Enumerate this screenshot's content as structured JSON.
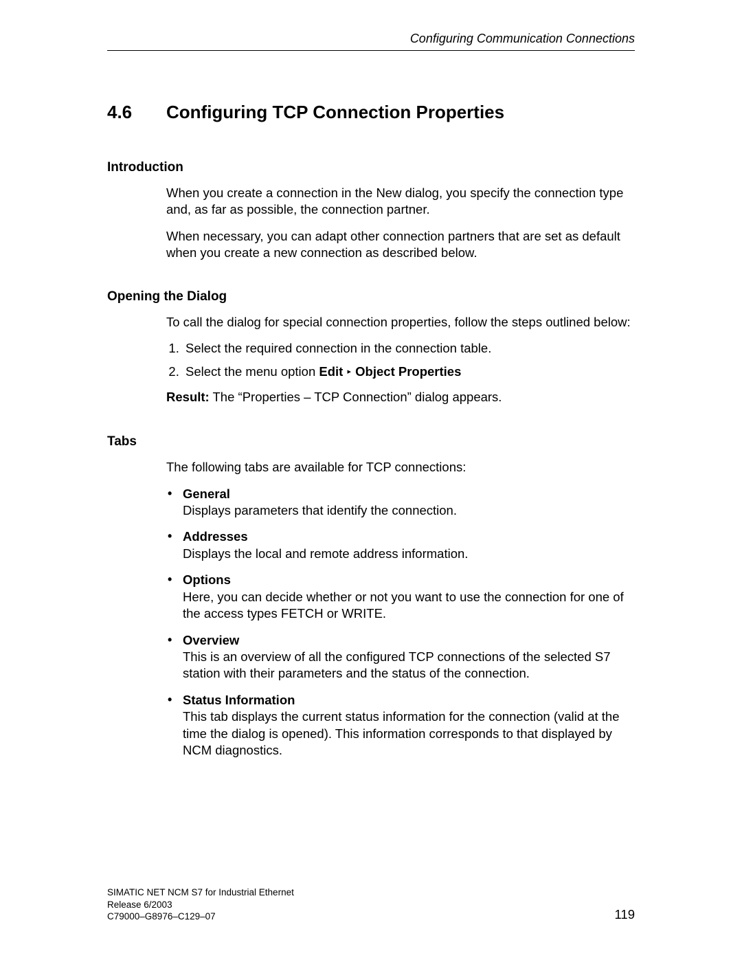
{
  "header": {
    "running_title": "Configuring Communication Connections"
  },
  "section": {
    "number": "4.6",
    "title": "Configuring TCP Connection Properties"
  },
  "intro": {
    "heading": "Introduction",
    "p1": "When you create a connection in the New dialog, you specify the connection type and, as far as possible, the connection partner.",
    "p2": "When necessary, you can adapt other connection partners that are set as default when you create a new connection as described below."
  },
  "opening": {
    "heading": "Opening the Dialog",
    "intro": "To call the dialog for special connection properties, follow the steps outlined below:",
    "step1": "Select the required connection in the connection table.",
    "step2_prefix": "Select the menu option ",
    "step2_menu1": "Edit",
    "step2_menu2": "Object Properties",
    "result_label": "Result:",
    "result_text": " The “Properties – TCP Connection” dialog appears."
  },
  "tabs": {
    "heading": "Tabs",
    "intro": "The following tabs are available for TCP connections:",
    "items": [
      {
        "name": "General",
        "desc": "Displays parameters that identify the connection."
      },
      {
        "name": "Addresses",
        "desc": "Displays the local and remote address information."
      },
      {
        "name": "Options",
        "desc": "Here, you can decide whether or not you want to use the connection for one of the access types FETCH or WRITE."
      },
      {
        "name": "Overview",
        "desc": "This is an overview of all the configured TCP connections of the selected S7 station with their parameters and the status of the connection."
      },
      {
        "name": "Status Information",
        "desc": "This tab displays the current status information for the connection (valid at the time the dialog is opened). This information corresponds to that displayed by NCM diagnostics."
      }
    ]
  },
  "footer": {
    "line1": "SIMATIC NET NCM S7 for Industrial Ethernet",
    "line2": "Release 6/2003",
    "line3": "C79000–G8976–C129–07",
    "page_number": "119"
  }
}
